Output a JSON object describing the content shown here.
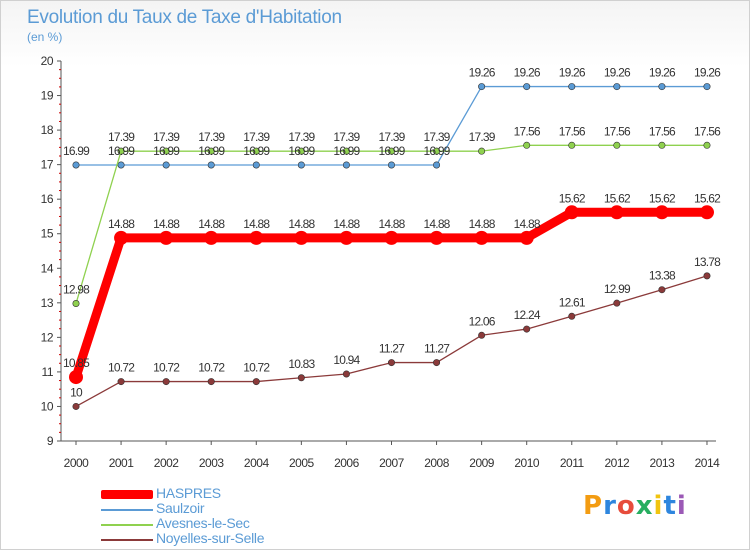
{
  "chart_data": {
    "type": "line",
    "title": "Evolution du Taux de Taxe d'Habitation",
    "subtitle": "(en %)",
    "x": [
      "2000",
      "2001",
      "2002",
      "2003",
      "2004",
      "2005",
      "2006",
      "2007",
      "2008",
      "2009",
      "2010",
      "2011",
      "2012",
      "2013",
      "2014"
    ],
    "ylim": [
      9,
      20
    ],
    "yticks": [
      "9",
      "10",
      "11",
      "12",
      "13",
      "14",
      "15",
      "16",
      "17",
      "18",
      "19",
      "20"
    ],
    "grid": false,
    "legend_position": "bottom-left",
    "series": [
      {
        "name": "HASPRES",
        "color": "#ff0000",
        "values": [
          10.85,
          14.88,
          14.88,
          14.88,
          14.88,
          14.88,
          14.88,
          14.88,
          14.88,
          14.88,
          14.88,
          15.62,
          15.62,
          15.62,
          15.62
        ],
        "labels": [
          "10.85",
          "14.88",
          "14.88",
          "14.88",
          "14.88",
          "14.88",
          "14.88",
          "14.88",
          "14.88",
          "14.88",
          "14.88",
          "15.62",
          "15.62",
          "15.62",
          "15.62"
        ]
      },
      {
        "name": "Saulzoir",
        "color": "#5b9bd5",
        "values": [
          16.99,
          16.99,
          16.99,
          16.99,
          16.99,
          16.99,
          16.99,
          16.99,
          16.99,
          19.26,
          19.26,
          19.26,
          19.26,
          19.26,
          19.26
        ],
        "labels": [
          "16.99",
          "16.99",
          "16.99",
          "16.99",
          "16.99",
          "16.99",
          "16.99",
          "16.99",
          "16.99",
          "19.26",
          "19.26",
          "19.26",
          "19.26",
          "19.26",
          "19.26"
        ]
      },
      {
        "name": "Avesnes-le-Sec",
        "color": "#8fd14f",
        "values": [
          12.98,
          17.39,
          17.39,
          17.39,
          17.39,
          17.39,
          17.39,
          17.39,
          17.39,
          17.39,
          17.56,
          17.56,
          17.56,
          17.56,
          17.56
        ],
        "labels": [
          "12.98",
          "17.39",
          "17.39",
          "17.39",
          "17.39",
          "17.39",
          "17.39",
          "17.39",
          "17.39",
          "17.39",
          "17.56",
          "17.56",
          "17.56",
          "17.56",
          "17.56"
        ]
      },
      {
        "name": "Noyelles-sur-Selle",
        "color": "#8b3a3a",
        "values": [
          10,
          10.72,
          10.72,
          10.72,
          10.72,
          10.83,
          10.94,
          11.27,
          11.27,
          12.06,
          12.24,
          12.61,
          12.99,
          13.38,
          13.78
        ],
        "labels": [
          "10",
          "10.72",
          "10.72",
          "10.72",
          "10.72",
          "10.83",
          "10.94",
          "11.27",
          "11.27",
          "12.06",
          "12.24",
          "12.61",
          "12.99",
          "13.38",
          "13.78"
        ]
      }
    ]
  },
  "logo": {
    "text": "Proxiti",
    "colors": [
      "#f39c12",
      "#2e86de",
      "#e74c3c",
      "#27ae60",
      "#f1c40f",
      "#2e86de",
      "#9b59b6"
    ]
  }
}
